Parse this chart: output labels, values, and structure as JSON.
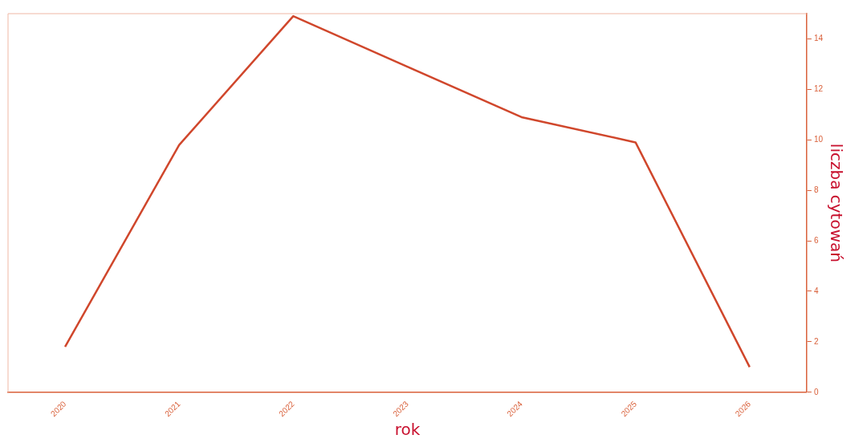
{
  "chart_data": {
    "type": "line",
    "xlabel": "rok",
    "ylabel": "liczba cytowań",
    "categories": [
      "2020",
      "2021",
      "2022",
      "2023",
      "2024",
      "2025",
      "2026"
    ],
    "series": [
      {
        "color": "#d0472c",
        "values": [
          1.8,
          9.8,
          14.9,
          12.9,
          10.9,
          9.9,
          1.0
        ]
      }
    ],
    "ylim": [
      0,
      15
    ],
    "yticks": [
      0,
      2,
      4,
      6,
      8,
      10,
      12,
      14
    ],
    "grid": false,
    "legend": false,
    "marker": "none",
    "line_style": "solid"
  }
}
